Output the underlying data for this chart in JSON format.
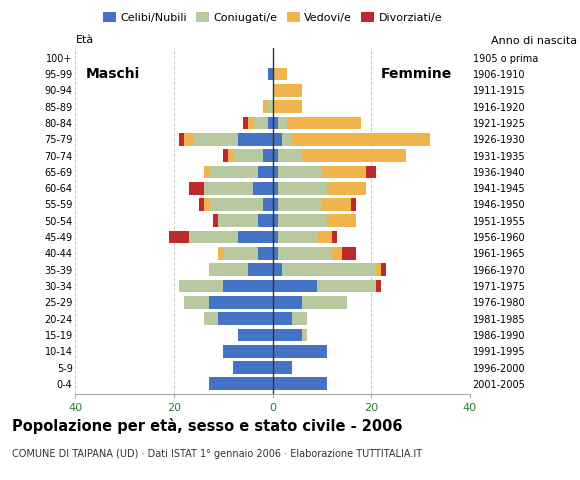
{
  "age_groups": [
    "0-4",
    "5-9",
    "10-14",
    "15-19",
    "20-24",
    "25-29",
    "30-34",
    "35-39",
    "40-44",
    "45-49",
    "50-54",
    "55-59",
    "60-64",
    "65-69",
    "70-74",
    "75-79",
    "80-84",
    "85-89",
    "90-94",
    "95-99",
    "100+"
  ],
  "birth_years": [
    "2001-2005",
    "1996-2000",
    "1991-1995",
    "1986-1990",
    "1981-1985",
    "1976-1980",
    "1971-1975",
    "1966-1970",
    "1961-1965",
    "1956-1960",
    "1951-1955",
    "1946-1950",
    "1941-1945",
    "1936-1940",
    "1931-1935",
    "1926-1930",
    "1921-1925",
    "1916-1920",
    "1911-1915",
    "1906-1910",
    "1905 o prima"
  ],
  "males": {
    "celibe": [
      13,
      8,
      10,
      7,
      11,
      13,
      10,
      5,
      3,
      7,
      3,
      2,
      4,
      3,
      2,
      7,
      1,
      0,
      0,
      1,
      0
    ],
    "coniugato": [
      0,
      0,
      0,
      0,
      3,
      5,
      9,
      8,
      7,
      10,
      8,
      11,
      10,
      10,
      6,
      9,
      3,
      1,
      0,
      0,
      0
    ],
    "vedovo": [
      0,
      0,
      0,
      0,
      0,
      0,
      0,
      0,
      1,
      0,
      0,
      1,
      0,
      1,
      1,
      2,
      1,
      1,
      0,
      0,
      0
    ],
    "divorziato": [
      0,
      0,
      0,
      0,
      0,
      0,
      0,
      0,
      0,
      4,
      1,
      1,
      3,
      0,
      1,
      1,
      1,
      0,
      0,
      0,
      0
    ]
  },
  "females": {
    "nubile": [
      11,
      4,
      11,
      6,
      4,
      6,
      9,
      2,
      1,
      1,
      1,
      1,
      1,
      1,
      1,
      2,
      1,
      0,
      0,
      0,
      0
    ],
    "coniugata": [
      0,
      0,
      0,
      1,
      3,
      9,
      12,
      19,
      11,
      8,
      10,
      9,
      10,
      9,
      5,
      2,
      2,
      0,
      0,
      0,
      0
    ],
    "vedova": [
      0,
      0,
      0,
      0,
      0,
      0,
      0,
      1,
      2,
      3,
      6,
      6,
      8,
      9,
      21,
      28,
      15,
      6,
      6,
      3,
      0
    ],
    "divorziata": [
      0,
      0,
      0,
      0,
      0,
      0,
      1,
      1,
      3,
      1,
      0,
      1,
      0,
      2,
      0,
      0,
      0,
      0,
      0,
      0,
      0
    ]
  },
  "colors": {
    "celibe": "#4472c4",
    "coniugato": "#b8c9a0",
    "vedovo": "#f0b44c",
    "divorziato": "#c0292b"
  },
  "xlim": 40,
  "title": "Popolazione per età, sesso e stato civile - 2006",
  "subtitle": "COMUNE DI TAIPANA (UD) · Dati ISTAT 1° gennaio 2006 · Elaborazione TUTTITALIA.IT",
  "xlabel_left": "Età",
  "xlabel_right": "Anno di nascita",
  "label_maschi": "Maschi",
  "label_femmine": "Femmine",
  "legend_labels": [
    "Celibi/Nubili",
    "Coniugati/e",
    "Vedovi/e",
    "Divorziati/e"
  ],
  "background_color": "#ffffff",
  "grid_color": "#cccccc"
}
